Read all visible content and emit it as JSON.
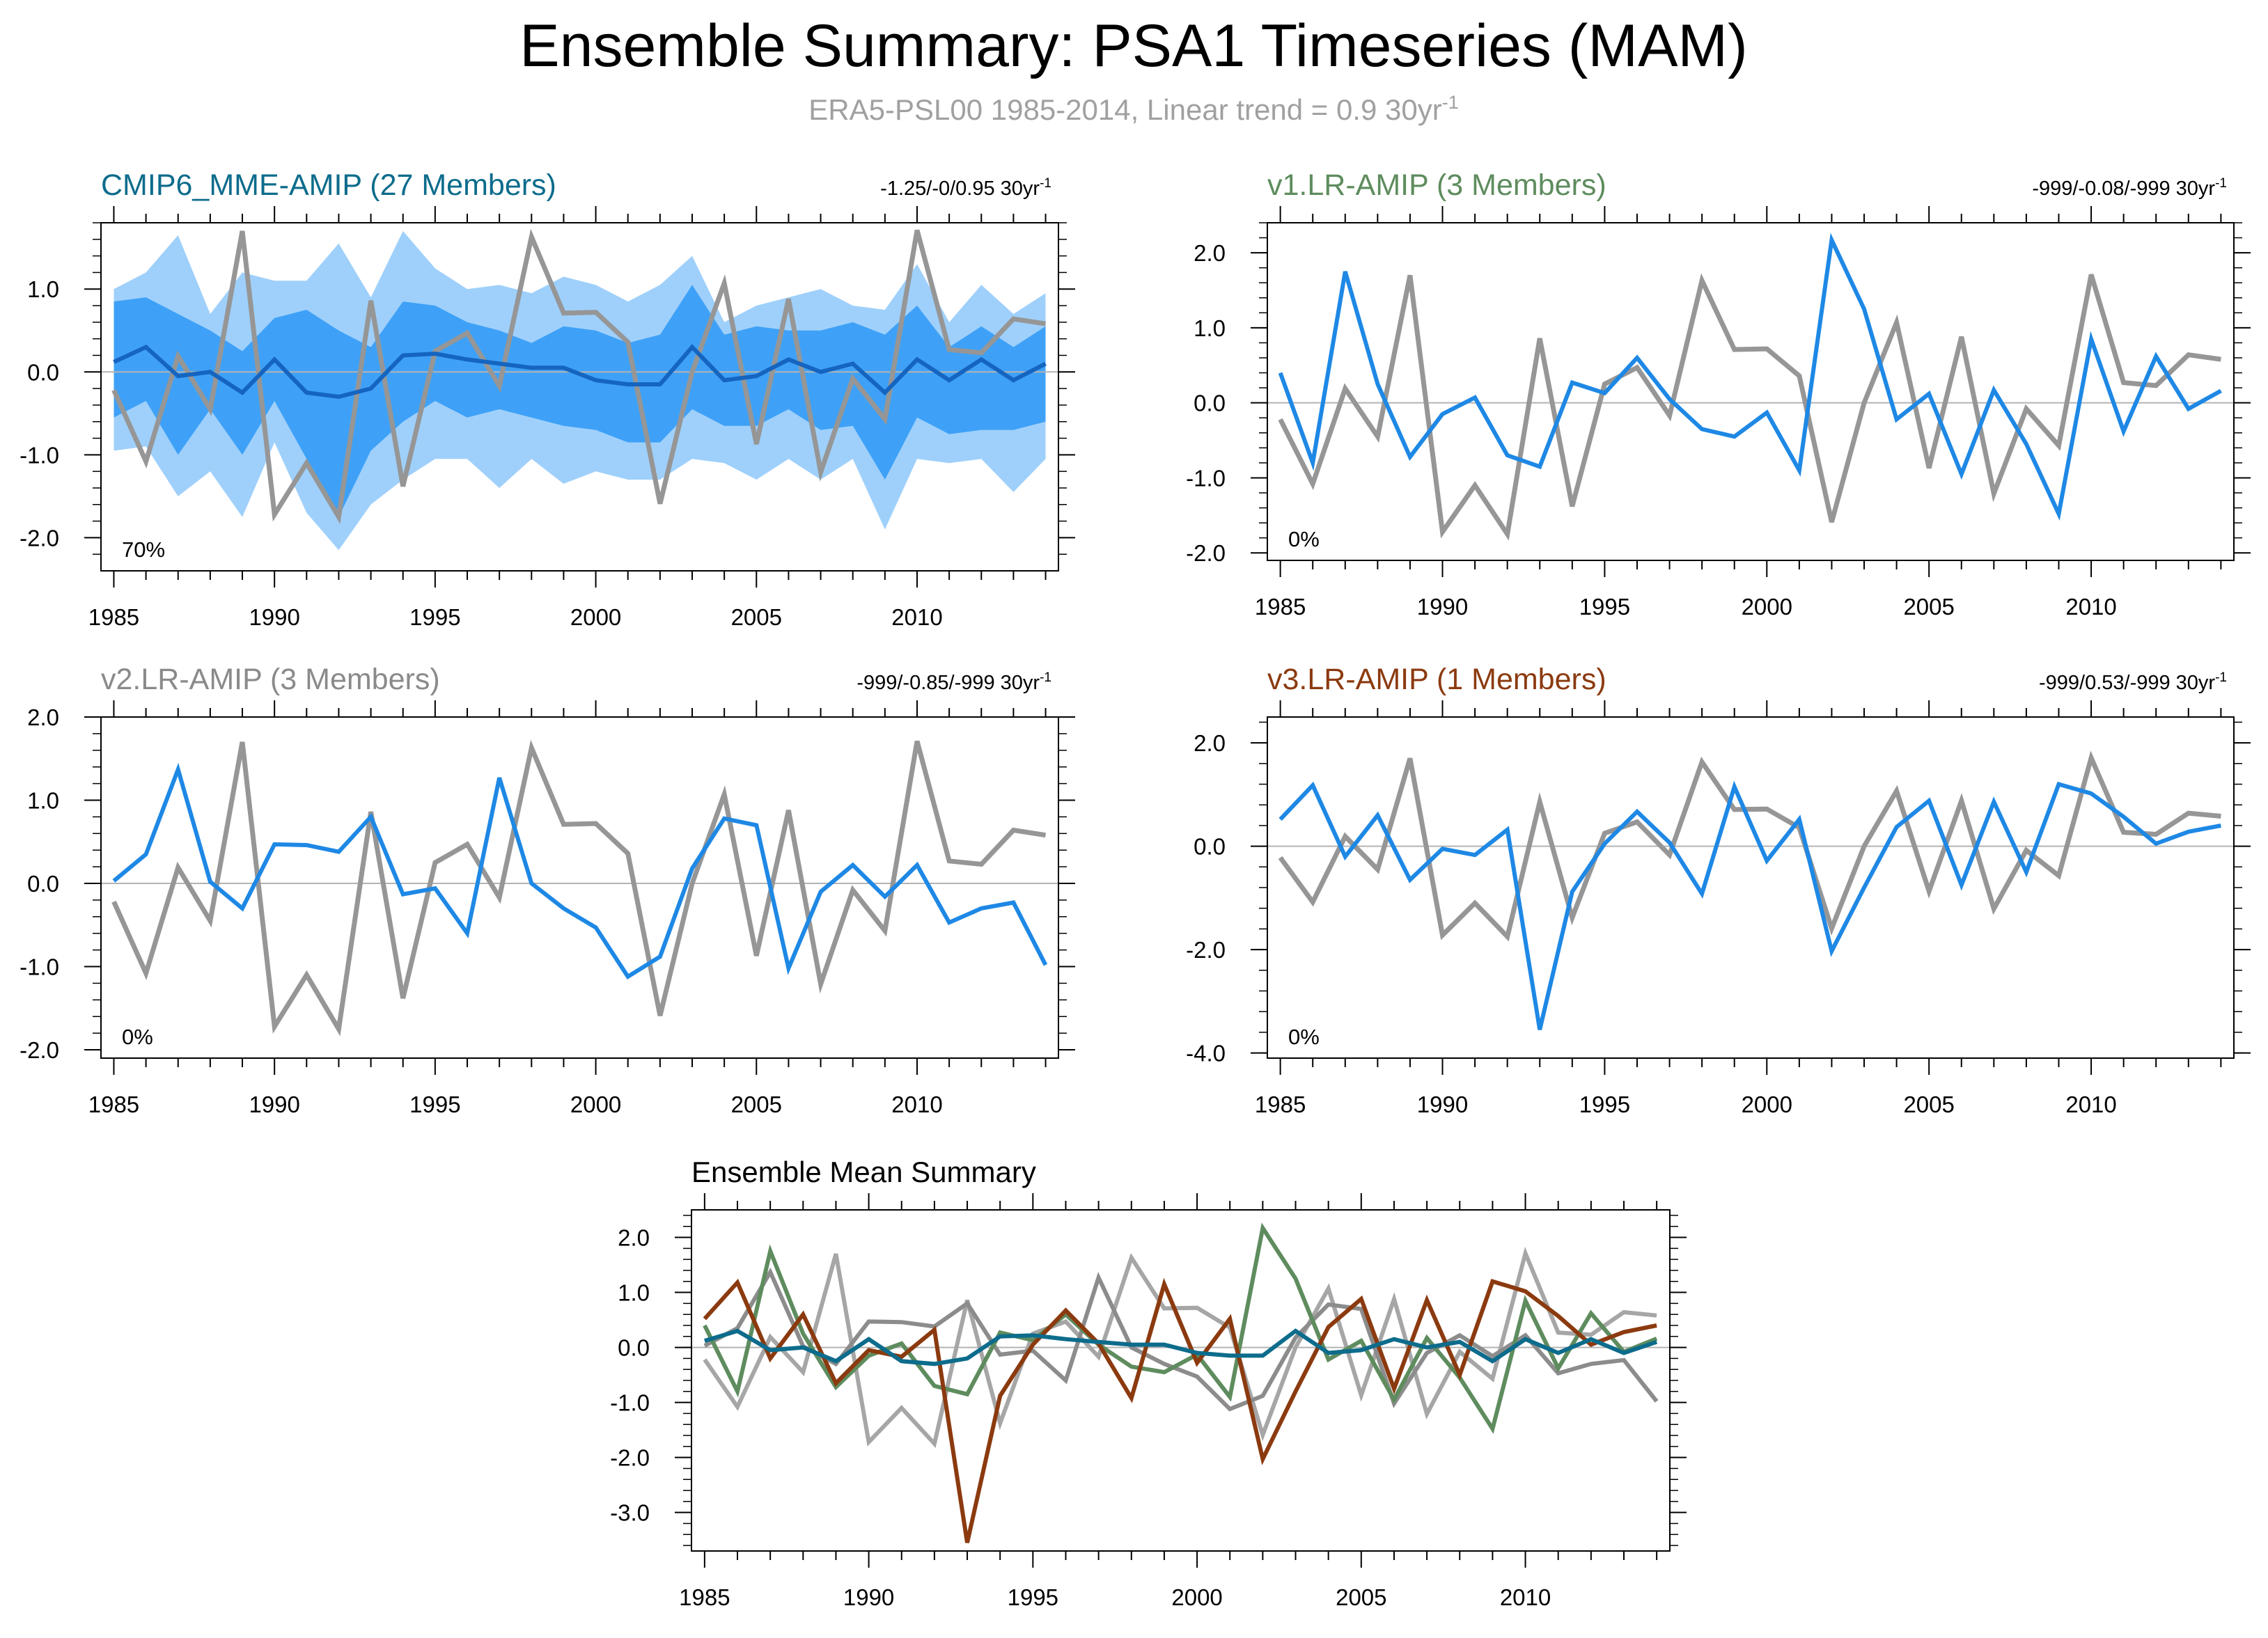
{
  "figure": {
    "title": "Ensemble Summary: PSA1 Timeseries (MAM)",
    "subtitle": "ERA5-PSL00 1985-2014, Linear trend = 0.9 30yr",
    "subtitle_sup": "-1"
  },
  "colors": {
    "obs": "#969696",
    "model": "#1e88e5",
    "mme_mean": "#1565c0",
    "band_inner": "#3ea1f7",
    "band_outer": "#9fd0fb",
    "zero_line": "#b4b4b4",
    "mme_title": "#0d6c8c",
    "v1_title": "#5e8c5e",
    "v2_title": "#8a8a8a",
    "v3_title": "#8b3a0f",
    "summary_title": "#000000"
  },
  "chart_data": [
    {
      "id": "cmip6",
      "type": "line",
      "title": "CMIP6_MME-AMIP (27 Members)",
      "trend_label": "-1.25/-0/0.95 30yr",
      "trend_sup": "-1",
      "percent_label": "70%",
      "xlim": [
        1984.6,
        2014.4
      ],
      "ylim": [
        -2.4,
        1.8
      ],
      "yticks": [
        -2.0,
        -1.0,
        0.0,
        1.0
      ],
      "yticklabels": [
        "-2.0",
        "-1.0",
        "0.0",
        "1.0"
      ],
      "xticks": [
        1985,
        1990,
        1995,
        2000,
        2005,
        2010
      ],
      "xticklabels": [
        "1985",
        "1990",
        "1995",
        "2000",
        "2005",
        "2010"
      ],
      "x": [
        1985,
        1986,
        1987,
        1988,
        1989,
        1990,
        1991,
        1992,
        1993,
        1994,
        1995,
        1996,
        1997,
        1998,
        1999,
        2000,
        2001,
        2002,
        2003,
        2004,
        2005,
        2006,
        2007,
        2008,
        2009,
        2010,
        2011,
        2012,
        2013,
        2014
      ],
      "band_outer": {
        "upper": [
          1.0,
          1.2,
          1.65,
          0.7,
          1.2,
          1.1,
          1.1,
          1.55,
          0.9,
          1.7,
          1.25,
          1.0,
          1.05,
          0.95,
          1.15,
          1.05,
          0.85,
          1.05,
          1.4,
          0.6,
          0.8,
          0.9,
          1.0,
          0.8,
          0.75,
          1.3,
          0.6,
          1.05,
          0.7,
          0.95
        ],
        "lower": [
          -0.95,
          -0.9,
          -1.5,
          -1.2,
          -1.75,
          -0.85,
          -1.7,
          -2.15,
          -1.6,
          -1.3,
          -1.05,
          -1.05,
          -1.4,
          -1.05,
          -1.35,
          -1.2,
          -1.3,
          -1.3,
          -1.05,
          -1.1,
          -1.3,
          -1.05,
          -1.3,
          -1.05,
          -1.9,
          -1.05,
          -1.1,
          -1.05,
          -1.45,
          -1.05
        ]
      },
      "band_inner": {
        "upper": [
          0.85,
          0.9,
          0.7,
          0.5,
          0.25,
          0.65,
          0.75,
          0.5,
          0.3,
          0.85,
          0.8,
          0.6,
          0.5,
          0.35,
          0.55,
          0.5,
          0.35,
          0.45,
          1.05,
          0.45,
          0.55,
          0.5,
          0.5,
          0.6,
          0.45,
          0.8,
          0.3,
          0.55,
          0.3,
          0.55
        ],
        "lower": [
          -0.55,
          -0.35,
          -1.0,
          -0.45,
          -1.0,
          -0.35,
          -1.05,
          -1.75,
          -0.95,
          -0.6,
          -0.35,
          -0.55,
          -0.45,
          -0.55,
          -0.65,
          -0.7,
          -0.85,
          -0.85,
          -0.45,
          -0.65,
          -0.65,
          -0.45,
          -0.7,
          -0.65,
          -1.3,
          -0.55,
          -0.75,
          -0.7,
          -0.7,
          -0.6
        ]
      },
      "series": [
        {
          "name": "ERA5-PSL00",
          "color": "#969696",
          "width": 7,
          "values": [
            -0.22,
            -1.08,
            0.19,
            -0.45,
            1.7,
            -1.72,
            -1.1,
            -1.75,
            0.86,
            -1.38,
            0.25,
            0.47,
            -0.17,
            1.63,
            0.71,
            0.72,
            0.36,
            -1.59,
            0.0,
            1.07,
            -0.87,
            0.88,
            -1.21,
            -0.08,
            -0.57,
            1.71,
            0.27,
            0.23,
            0.64,
            0.58
          ]
        },
        {
          "name": "CMIP6_MME-AMIP",
          "color": "#1565c0",
          "width": 6,
          "values": [
            0.12,
            0.3,
            -0.05,
            0.0,
            -0.25,
            0.15,
            -0.25,
            -0.3,
            -0.2,
            0.2,
            0.22,
            0.15,
            0.1,
            0.05,
            0.05,
            -0.1,
            -0.15,
            -0.15,
            0.3,
            -0.1,
            -0.05,
            0.15,
            0.0,
            0.1,
            -0.25,
            0.15,
            -0.1,
            0.15,
            -0.1,
            0.1
          ]
        }
      ]
    },
    {
      "id": "v1",
      "type": "line",
      "title": "v1.LR-AMIP (3 Members)",
      "trend_label": "-999/-0.08/-999 30yr",
      "trend_sup": "-1",
      "percent_label": "0%",
      "xlim": [
        1984.6,
        2014.4
      ],
      "ylim": [
        -2.1,
        2.4
      ],
      "yticks": [
        -2.0,
        -1.0,
        0.0,
        1.0,
        2.0
      ],
      "yticklabels": [
        "-2.0",
        "-1.0",
        "0.0",
        "1.0",
        "2.0"
      ],
      "xticks": [
        1985,
        1990,
        1995,
        2000,
        2005,
        2010
      ],
      "xticklabels": [
        "1985",
        "1990",
        "1995",
        "2000",
        "2005",
        "2010"
      ],
      "x": [
        1985,
        1986,
        1987,
        1988,
        1989,
        1990,
        1991,
        1992,
        1993,
        1994,
        1995,
        1996,
        1997,
        1998,
        1999,
        2000,
        2001,
        2002,
        2003,
        2004,
        2005,
        2006,
        2007,
        2008,
        2009,
        2010,
        2011,
        2012,
        2013,
        2014
      ],
      "series": [
        {
          "name": "ERA5-PSL00",
          "color": "#969696",
          "width": 7,
          "values": [
            -0.22,
            -1.08,
            0.19,
            -0.45,
            1.7,
            -1.72,
            -1.1,
            -1.75,
            0.86,
            -1.38,
            0.25,
            0.47,
            -0.17,
            1.63,
            0.71,
            0.72,
            0.36,
            -1.59,
            0.0,
            1.07,
            -0.87,
            0.88,
            -1.21,
            -0.08,
            -0.57,
            1.71,
            0.27,
            0.23,
            0.64,
            0.58
          ]
        },
        {
          "name": "v1.LR-AMIP",
          "color": "#1e88e5",
          "width": 6,
          "values": [
            0.4,
            -0.8,
            1.75,
            0.25,
            -0.72,
            -0.15,
            0.07,
            -0.7,
            -0.85,
            0.27,
            0.13,
            0.6,
            0.05,
            -0.35,
            -0.45,
            -0.13,
            -0.9,
            2.17,
            1.25,
            -0.22,
            0.12,
            -0.95,
            0.17,
            -0.55,
            -1.48,
            0.85,
            -0.38,
            0.62,
            -0.08,
            0.16
          ]
        }
      ]
    },
    {
      "id": "v2",
      "type": "line",
      "title": "v2.LR-AMIP (3 Members)",
      "trend_label": "-999/-0.85/-999 30yr",
      "trend_sup": "-1",
      "percent_label": "0%",
      "xlim": [
        1984.6,
        2014.4
      ],
      "ylim": [
        -2.1,
        2.0
      ],
      "yticks": [
        -2.0,
        -1.0,
        0.0,
        1.0,
        2.0
      ],
      "yticklabels": [
        "-2.0",
        "-1.0",
        "0.0",
        "1.0",
        "2.0"
      ],
      "xticks": [
        1985,
        1990,
        1995,
        2000,
        2005,
        2010
      ],
      "xticklabels": [
        "1985",
        "1990",
        "1995",
        "2000",
        "2005",
        "2010"
      ],
      "x": [
        1985,
        1986,
        1987,
        1988,
        1989,
        1990,
        1991,
        1992,
        1993,
        1994,
        1995,
        1996,
        1997,
        1998,
        1999,
        2000,
        2001,
        2002,
        2003,
        2004,
        2005,
        2006,
        2007,
        2008,
        2009,
        2010,
        2011,
        2012,
        2013,
        2014
      ],
      "series": [
        {
          "name": "ERA5-PSL00",
          "color": "#969696",
          "width": 7,
          "values": [
            -0.22,
            -1.08,
            0.19,
            -0.45,
            1.7,
            -1.72,
            -1.1,
            -1.75,
            0.86,
            -1.38,
            0.25,
            0.47,
            -0.17,
            1.63,
            0.71,
            0.72,
            0.36,
            -1.59,
            0.0,
            1.07,
            -0.87,
            0.88,
            -1.21,
            -0.08,
            -0.57,
            1.71,
            0.27,
            0.23,
            0.64,
            0.58
          ]
        },
        {
          "name": "v2.LR-AMIP",
          "color": "#1e88e5",
          "width": 6,
          "values": [
            0.03,
            0.35,
            1.37,
            0.02,
            -0.3,
            0.47,
            0.46,
            0.38,
            0.8,
            -0.13,
            -0.06,
            -0.6,
            1.27,
            0.0,
            -0.3,
            -0.53,
            -1.12,
            -0.88,
            0.18,
            0.78,
            0.7,
            -1.02,
            -0.1,
            0.22,
            -0.16,
            0.22,
            -0.47,
            -0.3,
            -0.23,
            -0.98
          ]
        }
      ]
    },
    {
      "id": "v3",
      "type": "line",
      "title": "v3.LR-AMIP (1 Members)",
      "trend_label": "-999/0.53/-999 30yr",
      "trend_sup": "-1",
      "percent_label": "0%",
      "xlim": [
        1984.6,
        2014.4
      ],
      "ylim": [
        -4.1,
        2.5
      ],
      "yticks": [
        -4.0,
        -2.0,
        0.0,
        2.0
      ],
      "yticklabels": [
        "-4.0",
        "-2.0",
        "0.0",
        "2.0"
      ],
      "xticks": [
        1985,
        1990,
        1995,
        2000,
        2005,
        2010
      ],
      "xticklabels": [
        "1985",
        "1990",
        "1995",
        "2000",
        "2005",
        "2010"
      ],
      "x": [
        1985,
        1986,
        1987,
        1988,
        1989,
        1990,
        1991,
        1992,
        1993,
        1994,
        1995,
        1996,
        1997,
        1998,
        1999,
        2000,
        2001,
        2002,
        2003,
        2004,
        2005,
        2006,
        2007,
        2008,
        2009,
        2010,
        2011,
        2012,
        2013,
        2014
      ],
      "series": [
        {
          "name": "ERA5-PSL00",
          "color": "#969696",
          "width": 7,
          "values": [
            -0.22,
            -1.08,
            0.19,
            -0.45,
            1.7,
            -1.72,
            -1.1,
            -1.75,
            0.86,
            -1.38,
            0.25,
            0.47,
            -0.17,
            1.63,
            0.71,
            0.72,
            0.36,
            -1.59,
            0.0,
            1.07,
            -0.87,
            0.88,
            -1.21,
            -0.08,
            -0.57,
            1.71,
            0.27,
            0.23,
            0.64,
            0.58
          ]
        },
        {
          "name": "v3.LR-AMIP",
          "color": "#1e88e5",
          "width": 6,
          "values": [
            0.52,
            1.18,
            -0.2,
            0.6,
            -0.65,
            -0.05,
            -0.17,
            0.32,
            -3.55,
            -0.88,
            0.05,
            0.67,
            0.07,
            -0.92,
            1.15,
            -0.28,
            0.52,
            -2.03,
            -0.8,
            0.37,
            0.88,
            -0.75,
            0.86,
            -0.5,
            1.2,
            1.02,
            0.57,
            0.05,
            0.28,
            0.4
          ]
        }
      ]
    },
    {
      "id": "summary",
      "type": "line",
      "title": "Ensemble Mean Summary",
      "xlim": [
        1984.6,
        2014.4
      ],
      "ylim": [
        -3.7,
        2.5
      ],
      "yticks": [
        -3.0,
        -2.0,
        -1.0,
        0.0,
        1.0,
        2.0
      ],
      "yticklabels": [
        "-3.0",
        "-2.0",
        "-1.0",
        "0.0",
        "1.0",
        "2.0"
      ],
      "xticks": [
        1985,
        1990,
        1995,
        2000,
        2005,
        2010
      ],
      "xticklabels": [
        "1985",
        "1990",
        "1995",
        "2000",
        "2005",
        "2010"
      ],
      "x": [
        1985,
        1986,
        1987,
        1988,
        1989,
        1990,
        1991,
        1992,
        1993,
        1994,
        1995,
        1996,
        1997,
        1998,
        1999,
        2000,
        2001,
        2002,
        2003,
        2004,
        2005,
        2006,
        2007,
        2008,
        2009,
        2010,
        2011,
        2012,
        2013,
        2014
      ],
      "series": [
        {
          "name": "ERA5-PSL00",
          "color": "#a6a6a6",
          "width": 6,
          "values": [
            -0.22,
            -1.08,
            0.19,
            -0.45,
            1.7,
            -1.72,
            -1.1,
            -1.75,
            0.86,
            -1.38,
            0.25,
            0.47,
            -0.17,
            1.63,
            0.71,
            0.72,
            0.36,
            -1.59,
            0.0,
            1.07,
            -0.87,
            0.88,
            -1.21,
            -0.08,
            -0.57,
            1.71,
            0.27,
            0.23,
            0.64,
            0.58
          ]
        },
        {
          "name": "v2.LR-AMIP",
          "color": "#8c8c8c",
          "width": 6,
          "values": [
            0.03,
            0.35,
            1.37,
            0.02,
            -0.3,
            0.47,
            0.46,
            0.38,
            0.8,
            -0.13,
            -0.06,
            -0.6,
            1.27,
            0.0,
            -0.3,
            -0.53,
            -1.12,
            -0.88,
            0.18,
            0.78,
            0.7,
            -1.02,
            -0.1,
            0.22,
            -0.16,
            0.22,
            -0.47,
            -0.3,
            -0.23,
            -0.98
          ]
        },
        {
          "name": "v1.LR-AMIP",
          "color": "#5e8c5e",
          "width": 6,
          "values": [
            0.4,
            -0.8,
            1.75,
            0.25,
            -0.72,
            -0.15,
            0.07,
            -0.7,
            -0.85,
            0.27,
            0.13,
            0.6,
            0.05,
            -0.35,
            -0.45,
            -0.13,
            -0.9,
            2.17,
            1.25,
            -0.22,
            0.12,
            -0.95,
            0.17,
            -0.55,
            -1.48,
            0.85,
            -0.38,
            0.62,
            -0.08,
            0.16
          ]
        },
        {
          "name": "v3.LR-AMIP",
          "color": "#8b3a0f",
          "width": 6,
          "values": [
            0.52,
            1.18,
            -0.2,
            0.6,
            -0.65,
            -0.05,
            -0.17,
            0.32,
            -3.55,
            -0.88,
            0.05,
            0.67,
            0.07,
            -0.92,
            1.15,
            -0.28,
            0.52,
            -2.03,
            -0.8,
            0.37,
            0.88,
            -0.75,
            0.86,
            -0.5,
            1.2,
            1.02,
            0.57,
            0.05,
            0.28,
            0.4
          ]
        },
        {
          "name": "CMIP6_MME-AMIP",
          "color": "#0d6c8c",
          "width": 6,
          "values": [
            0.12,
            0.3,
            -0.05,
            0.0,
            -0.25,
            0.15,
            -0.25,
            -0.3,
            -0.2,
            0.2,
            0.22,
            0.15,
            0.1,
            0.05,
            0.05,
            -0.1,
            -0.15,
            -0.15,
            0.3,
            -0.1,
            -0.05,
            0.15,
            0.0,
            0.1,
            -0.25,
            0.15,
            -0.1,
            0.15,
            -0.1,
            0.1
          ]
        }
      ]
    }
  ]
}
